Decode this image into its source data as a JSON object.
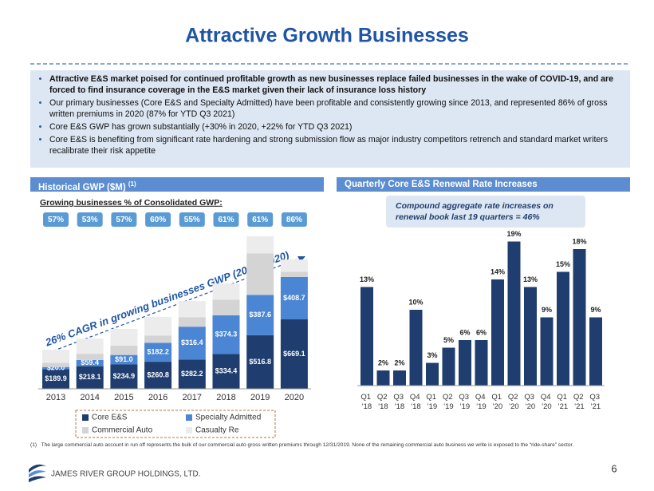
{
  "title": "Attractive Growth Businesses",
  "bullets": [
    "Attractive E&S market poised for continued profitable growth as new businesses replace failed businesses in the wake of COVID-19, and are forced to find insurance coverage in the E&S market given their lack of insurance loss history",
    "Our primary businesses (Core E&S and Specialty Admitted) have been profitable and consistently growing since 2013, and represented 86% of gross written premiums in 2020 (87% for YTD Q3 2021)",
    "Core E&S GWP has grown substantially (+30% in 2020, +22% for YTD Q3 2021)",
    "Core E&S is benefiting from significant rate hardening and strong submission flow as major industry competitors retrench and standard market writers recalibrate their risk appetite"
  ],
  "left_panel": {
    "header": "Historical GWP ($M)",
    "header_note": "(1)",
    "subtitle": "Growing businesses % of Consolidated GWP:",
    "percentages": [
      "57%",
      "53%",
      "57%",
      "60%",
      "55%",
      "61%",
      "61%",
      "86%"
    ]
  },
  "right_panel": {
    "header": "Quarterly Core E&S Renewal Rate Increases",
    "callout": [
      "Compound aggregate rate increases on",
      "renewal book last 19 quarters = 46%"
    ]
  },
  "chart_data": [
    {
      "type": "stacked_bar",
      "annotation": "26% CAGR in growing businesses GWP (2013- 2020)",
      "categories": [
        "2013",
        "2014",
        "2015",
        "2016",
        "2017",
        "2018",
        "2019",
        "2020"
      ],
      "series": [
        {
          "name": "Core E&S",
          "color": "#1f3d6e",
          "values": [
            189.9,
            218.1,
            234.9,
            260.8,
            282.2,
            334.4,
            516.8,
            669.1
          ],
          "value_labels": [
            "$189.9",
            "$218.1",
            "$234.9",
            "$260.8",
            "$282.2",
            "$334.4",
            "$516.8",
            "$669.1"
          ]
        },
        {
          "name": "Specialty Admitted",
          "color": "#4a86d4",
          "values": [
            20.0,
            59.4,
            91.0,
            182.2,
            316.4,
            374.3,
            387.6,
            408.7
          ],
          "value_labels": [
            "$20.0",
            "$59.4",
            "$91.0",
            "$182.2",
            "$316.4",
            "$374.3",
            "$387.6",
            "$408.7"
          ]
        },
        {
          "name": "Commercial Auto",
          "color": "#d4d4d4",
          "values": [
            40,
            60,
            90,
            70,
            90,
            150,
            400,
            50
          ]
        },
        {
          "name": "Casualty Re",
          "color": "#ececec",
          "values": [
            127,
            147,
            161,
            179,
            157,
            156,
            165,
            118
          ]
        }
      ]
    },
    {
      "type": "bar",
      "color": "#1f3d6e",
      "categories": [
        "Q1 '18",
        "Q2 '18",
        "Q3 '18",
        "Q4 '18",
        "Q1 '19",
        "Q2 '19",
        "Q3 '19",
        "Q4 '19",
        "Q1 '20",
        "Q2 '20",
        "Q3 '20",
        "Q4 '20",
        "Q1 '21",
        "Q2 '21",
        "Q3 '21"
      ],
      "values": [
        13,
        2,
        2,
        10,
        3,
        5,
        6,
        6,
        14,
        19,
        13,
        9,
        15,
        18,
        9
      ],
      "value_labels": [
        "13%",
        "2%",
        "2%",
        "10%",
        "3%",
        "5%",
        "6%",
        "6%",
        "14%",
        "19%",
        "13%",
        "9%",
        "15%",
        "18%",
        "9%"
      ]
    }
  ],
  "footnote": {
    "marker": "(1)",
    "text": "The large commercial auto account in run off represents the bulk of our commercial auto gross written premiums through 12/31/2019. None of the remaining commercial auto business we write is exposed to the “ride-share” sector."
  },
  "footer": {
    "company": "JAMES RIVER GROUP HOLDINGS, LTD.",
    "page": "6"
  }
}
